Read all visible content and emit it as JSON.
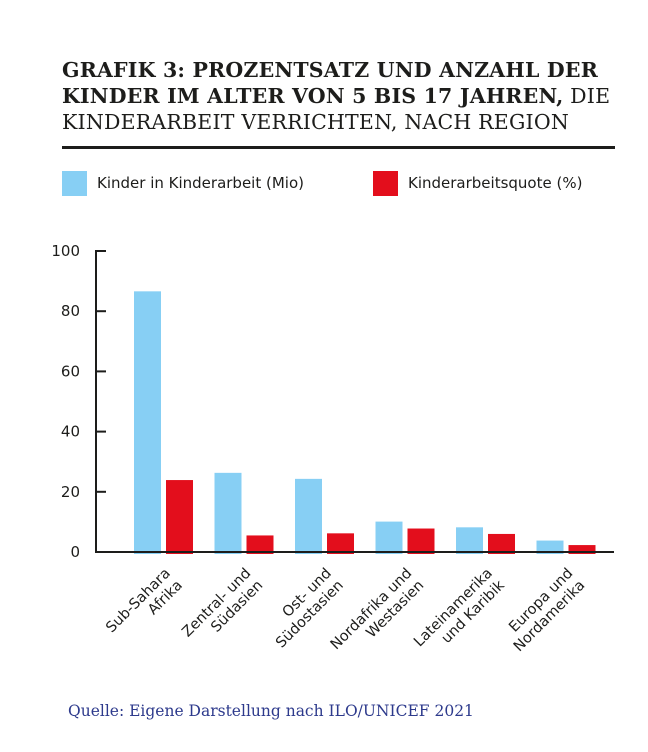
{
  "chart_data": {
    "type": "bar",
    "title_bold": "GRAFIK 3: PROZENTSATZ UND ANZAHL DER KINDER IM ALTER VON 5 BIS 17 JAHREN,",
    "title_regular": " DIE KINDERARBEIT VERRICHTEN, NACH REGION",
    "categories": [
      [
        "Sub-Sahara",
        "Afrika"
      ],
      [
        "Zentral- und",
        "Südasien"
      ],
      [
        "Ost- und",
        "Südostasien"
      ],
      [
        "Nordafrika und",
        "Westasien"
      ],
      [
        "Lateinamerika",
        "und Karibik"
      ],
      [
        "Europa und",
        "Nordamerika"
      ]
    ],
    "series": [
      {
        "name": "Kinder in Kinderarbeit (Mio)",
        "color": "#87cff4",
        "values": [
          86.6,
          26.3,
          24.3,
          10.1,
          8.2,
          3.8
        ]
      },
      {
        "name": "Kinderarbeitsquote (%)",
        "color": "#e30e1c",
        "values": [
          23.9,
          5.5,
          6.2,
          7.8,
          6.0,
          2.3
        ]
      }
    ],
    "ylim": [
      0,
      100
    ],
    "yticks": [
      "0",
      "20",
      "40",
      "60",
      "80",
      "100"
    ],
    "grid": false,
    "legend": "top-left"
  },
  "source": "Quelle: Eigene Darstellung nach ILO/UNICEF 2021"
}
